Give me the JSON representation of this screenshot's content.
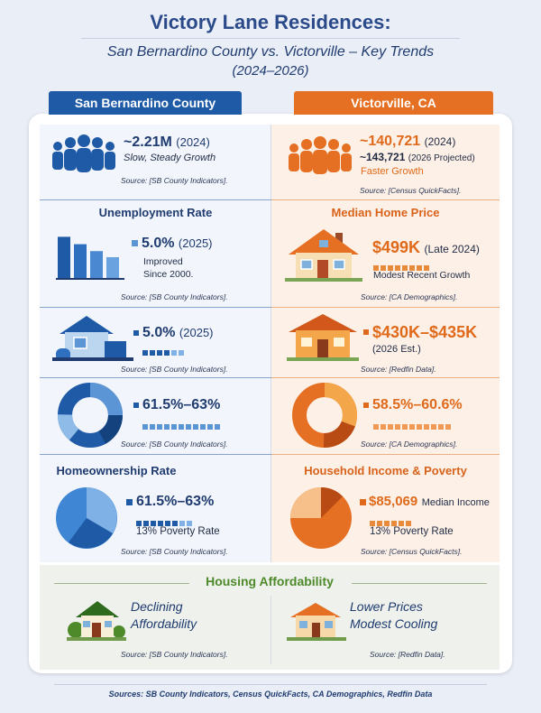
{
  "header": {
    "title": "Victory Lane Residences:",
    "subtitle": "San Bernardino County vs. Victorville – Key Trends",
    "years": "(2024–2026)"
  },
  "columns": {
    "left": "San Bernardino County",
    "right": "Victorville, CA"
  },
  "colors": {
    "blue": "#1f5aa6",
    "orange": "#e56f22",
    "green": "#4e8a2a"
  },
  "population": {
    "left": {
      "value": "~2.21M",
      "year": "(2024)",
      "note": "Slow, Steady Growth",
      "source": "Source: [SB County Indicators]."
    },
    "right": {
      "value1": "~140,721",
      "year1": "(2024)",
      "value2": "~143,721",
      "year2": "(2026 Projected)",
      "note": "Faster Growth",
      "source": "Source: [Census QuickFacts]."
    }
  },
  "row2": {
    "left": {
      "title": "Unemployment Rate",
      "value": "5.0%",
      "year": "(2025)",
      "note1": "Improved",
      "note2": "Since 2000.",
      "source": "Source: [SB County Indicators].",
      "bars": [
        0.95,
        0.78,
        0.62,
        0.48
      ]
    },
    "right": {
      "title": "Median Home Price",
      "value": "$499K",
      "year": "(Late 2024)",
      "note": "Modest Recent Growth",
      "source": "Source: [CA Demographics]."
    }
  },
  "row3": {
    "left": {
      "value": "5.0%",
      "year": "(2025)",
      "source": "Source: [SB County Indicators]."
    },
    "right": {
      "value": "$430K–$435K",
      "note": "(2026 Est.)",
      "source": "Source: [Redfin Data]."
    }
  },
  "row4": {
    "left": {
      "value": "61.5%–63%",
      "source": "Source: [SB County Indicators]."
    },
    "right": {
      "value": "58.5%–60.6%",
      "source": "Source: [CA Demographics]."
    }
  },
  "row5": {
    "left": {
      "title": "Homeownership Rate",
      "value": "61.5%–63%",
      "note": "13% Poverty Rate",
      "source": "Source: [SB County Indicators]."
    },
    "right": {
      "title": "Household Income & Poverty",
      "value": "$85,069",
      "value_label": "Median Income",
      "note": "13% Poverty Rate",
      "source": "Source: [Census QuickFacts]."
    }
  },
  "affordability": {
    "title": "Housing Affordability",
    "left": {
      "line1": "Declining",
      "line2": "Affordability",
      "source": "Source: [SB County Indicators]."
    },
    "right": {
      "line1": "Lower Prices",
      "line2": "Modest Cooling",
      "source": "Source: [Redfin Data]."
    }
  },
  "footer": "Sources: SB County Indicators, Census QuickFacts, CA Demographics, Redfin Data"
}
